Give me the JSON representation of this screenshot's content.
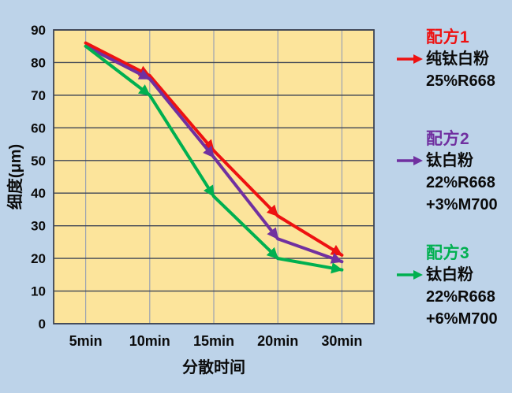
{
  "chart_data": {
    "type": "line",
    "title": "",
    "xlabel": "分散时间",
    "ylabel": "细度(μm)",
    "categories": [
      "5min",
      "10min",
      "15min",
      "20min",
      "30min"
    ],
    "series": [
      {
        "name": "配方1 纯钛白粉 25%R668",
        "color": "#ee1111",
        "values": [
          86,
          76,
          53,
          33,
          21
        ]
      },
      {
        "name": "配方2 钛白粉 22%R668+3%M700",
        "color": "#7030a0",
        "values": [
          85,
          75,
          51,
          26,
          19
        ]
      },
      {
        "name": "配方3 钛白粉 22%R668+6%M700",
        "color": "#00b050",
        "values": [
          85,
          70,
          39,
          20,
          16.5
        ]
      }
    ],
    "ylim": [
      0,
      90
    ],
    "yticks": [
      0,
      10,
      20,
      30,
      40,
      50,
      60,
      70,
      80,
      90
    ],
    "grid": true,
    "legend_position": "right",
    "line_style": "arrow-segments",
    "page_bg": "#bdd3e9",
    "plot_bg": "#fce49b",
    "hgrid_color": "#3d4454",
    "vgrid_color": "#9ba3b2",
    "tick_color": "#0b0b0b"
  },
  "legend": {
    "entries": [
      {
        "title": "配方1",
        "color": "#ee1111",
        "lines": [
          "纯钛白粉",
          "25%R668"
        ]
      },
      {
        "title": "配方2",
        "color": "#7030a0",
        "lines": [
          "钛白粉",
          "22%R668",
          "+3%M700"
        ]
      },
      {
        "title": "配方3",
        "color": "#00b050",
        "lines": [
          "钛白粉",
          "22%R668",
          "+6%M700"
        ]
      }
    ]
  }
}
